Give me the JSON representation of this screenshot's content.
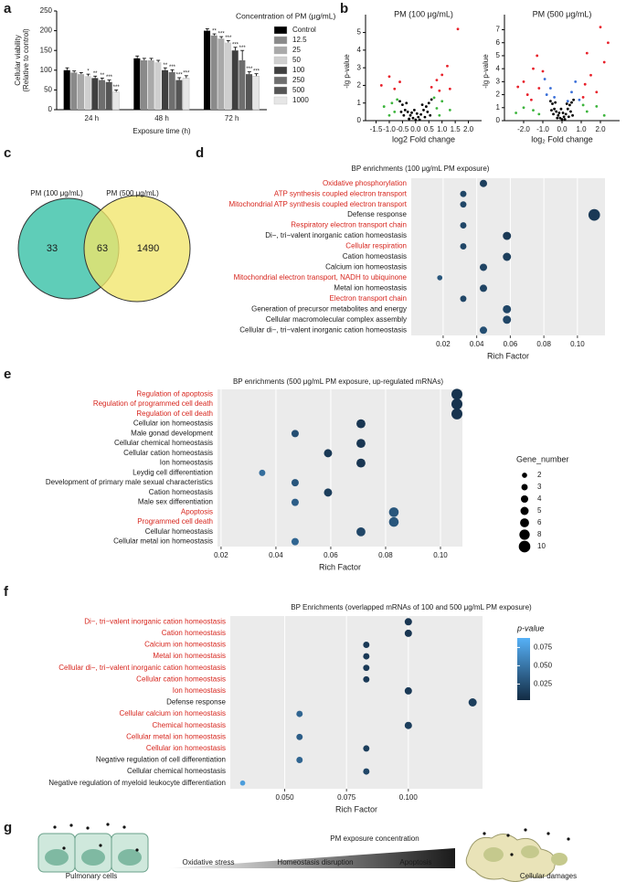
{
  "panel_labels": [
    "a",
    "b",
    "c",
    "d",
    "e",
    "f",
    "g"
  ],
  "chart_data": [
    {
      "type": "bar",
      "ylabel": [
        "Cellular viability",
        "(Relative to control)"
      ],
      "xlabel": "Exposure time (h)",
      "legend_title": "Concentration of PM (μg/mL)",
      "categories": [
        "24 h",
        "48 h",
        "72 h"
      ],
      "ylim": [
        0,
        250
      ],
      "yticks": [
        0,
        50,
        100,
        150,
        200,
        250
      ],
      "series": [
        {
          "name": "Control",
          "color": "#000000",
          "values": [
            100,
            130,
            200
          ],
          "errors": [
            6,
            6,
            5
          ],
          "annotations": [
            null,
            null,
            null
          ]
        },
        {
          "name": "12.5",
          "color": "#8a8a8a",
          "values": [
            94,
            125,
            188
          ],
          "errors": [
            4,
            5,
            4
          ],
          "annotations": [
            null,
            null,
            "**"
          ]
        },
        {
          "name": "25",
          "color": "#a9a9a9",
          "values": [
            90,
            125,
            180
          ],
          "errors": [
            4,
            5,
            5
          ],
          "annotations": [
            null,
            null,
            "***"
          ]
        },
        {
          "name": "50",
          "color": "#cfcfcf",
          "values": [
            85,
            120,
            170
          ],
          "errors": [
            5,
            5,
            5
          ],
          "annotations": [
            "*",
            null,
            "***"
          ]
        },
        {
          "name": "100",
          "color": "#3f3f3f",
          "values": [
            80,
            100,
            150
          ],
          "errors": [
            5,
            6,
            8
          ],
          "annotations": [
            "**",
            "**",
            "***"
          ]
        },
        {
          "name": "250",
          "color": "#6e6e6e",
          "values": [
            75,
            95,
            125
          ],
          "errors": [
            5,
            6,
            25
          ],
          "annotations": [
            "**",
            "***",
            "***"
          ]
        },
        {
          "name": "500",
          "color": "#555555",
          "values": [
            70,
            75,
            90
          ],
          "errors": [
            5,
            6,
            6
          ],
          "annotations": [
            "***",
            "***",
            "***"
          ]
        },
        {
          "name": "1000",
          "color": "#e6e6e6",
          "values": [
            45,
            80,
            85
          ],
          "errors": [
            5,
            6,
            6
          ],
          "annotations": [
            "***",
            "***",
            "***"
          ]
        }
      ]
    },
    {
      "type": "scatter",
      "title": "PM (100 μg/mL)",
      "xlabel": "log2 Fold change",
      "ylabel": "-lg p-value",
      "xlim": [
        -1.9,
        2.5
      ],
      "ylim": [
        0,
        5.6
      ],
      "xticks": [
        -1.5,
        {
          "value": -1,
          "label": "-1.0"
        },
        -0.5,
        {
          "value": 0,
          "label": "0.0"
        },
        0.5,
        {
          "value": 1,
          "label": "1.0"
        },
        1.5,
        {
          "value": 2,
          "label": "2.0"
        }
      ],
      "yticks": [
        0,
        1,
        2,
        3,
        4,
        5
      ],
      "series": [
        {
          "color": "#000000",
          "x": [
            -0.5,
            -0.4,
            -0.3,
            -0.2,
            -0.1,
            0,
            0.1,
            0.2,
            0.3,
            0.4,
            0.5,
            -0.6,
            0.6,
            -0.25,
            0.15,
            0.35,
            -0.45,
            0.05,
            -0.05,
            0.25,
            -0.35,
            0.45,
            -0.15,
            0.55,
            -0.55
          ],
          "y": [
            0.9,
            0.6,
            0.5,
            0.3,
            0.15,
            0.05,
            0.2,
            0.35,
            0.6,
            0.8,
            1.0,
            1.1,
            1.2,
            0.1,
            0.05,
            0.2,
            0.3,
            0.4,
            0.6,
            0.9,
            1.0,
            0.5,
            0.45,
            0.3,
            0.5
          ]
        },
        {
          "color": "#3cb43c",
          "x": [
            -1.2,
            -0.9,
            -0.8,
            0.8,
            1.0,
            1.3,
            -1.0,
            0.9,
            -0.7,
            0.7
          ],
          "y": [
            0.8,
            1.0,
            0.5,
            0.7,
            1.1,
            0.6,
            0.3,
            0.3,
            1.2,
            1.3
          ]
        },
        {
          "color": "#e8202a",
          "x": [
            -1.3,
            -0.8,
            -0.6,
            0.6,
            0.8,
            1.0,
            1.2,
            0.9,
            -1.0,
            1.6,
            1.3
          ],
          "y": [
            2.0,
            1.8,
            2.2,
            1.9,
            2.3,
            2.6,
            3.1,
            1.7,
            2.5,
            5.2,
            1.8
          ]
        }
      ]
    },
    {
      "type": "scatter",
      "title": "PM (500 μg/mL)",
      "xlabel": "log₂ Fold change",
      "ylabel": "-lg p-value",
      "xlim": [
        -3,
        3
      ],
      "ylim": [
        0,
        7.6
      ],
      "xticks": [
        {
          "value": -2,
          "label": "-2.0"
        },
        {
          "value": -1,
          "label": "-1.0"
        },
        {
          "value": 0,
          "label": "0.0"
        },
        {
          "value": 1,
          "label": "1.0"
        },
        {
          "value": 2,
          "label": "2.0"
        }
      ],
      "yticks": [
        0,
        1,
        2,
        3,
        4,
        5,
        6,
        7
      ],
      "series": [
        {
          "color": "#000000",
          "x": [
            -0.5,
            -0.4,
            -0.3,
            -0.2,
            -0.1,
            0,
            0.1,
            0.2,
            0.3,
            0.4,
            0.5,
            -0.6,
            0.6,
            -0.25,
            0.15,
            0.35,
            -0.45,
            0.05,
            -0.05,
            0.25,
            -0.35,
            0.45,
            -0.15,
            0.55,
            -0.55
          ],
          "y": [
            1.3,
            0.9,
            0.7,
            0.4,
            0.2,
            0.1,
            0.3,
            0.5,
            0.9,
            1.2,
            1.4,
            1.5,
            1.6,
            0.2,
            0.1,
            0.3,
            0.5,
            0.6,
            0.9,
            1.3,
            1.4,
            0.7,
            0.6,
            0.4,
            0.8
          ]
        },
        {
          "color": "#3cb43c",
          "x": [
            -1.5,
            -2.0,
            -1.2,
            1.3,
            1.8,
            2.2,
            -2.4,
            1.1
          ],
          "y": [
            0.8,
            1.0,
            0.5,
            0.7,
            1.1,
            0.4,
            0.6,
            1.2
          ]
        },
        {
          "color": "#3a6fd8",
          "x": [
            -0.8,
            -0.6,
            -0.4,
            0.5,
            0.7,
            0.9,
            -0.9,
            0.3
          ],
          "y": [
            2.0,
            2.5,
            1.8,
            2.2,
            3.0,
            1.6,
            3.2,
            1.5
          ]
        },
        {
          "color": "#e8202a",
          "x": [
            -2.0,
            -1.5,
            -1.2,
            -1.8,
            -1.3,
            -1.0,
            -2.3,
            1.2,
            1.5,
            1.8,
            2.2,
            1.3,
            2.0,
            1.1,
            -1.6,
            2.4
          ],
          "y": [
            3.0,
            4.0,
            2.5,
            2.0,
            5.0,
            3.8,
            2.6,
            2.8,
            3.5,
            2.2,
            4.5,
            5.2,
            7.2,
            1.8,
            1.6,
            6.0
          ]
        }
      ]
    },
    {
      "type": "dot",
      "title": "BP enrichments (100 μg/mL PM exposure)",
      "xlabel": "Rich Factor",
      "xlim": [
        0.001,
        0.1164
      ],
      "xticks": [
        0.02,
        0.04,
        0.06,
        0.08,
        {
          "value": 0.1,
          "label": "0.10"
        }
      ],
      "categories": [
        "Oxidative phosphorylation",
        "ATP synthesis coupled electron transport",
        "Mitochondrial ATP synthesis coupled electron transport",
        "Defense response",
        "Respiratory electron transport chain",
        "Di−, tri−valent inorganic cation homeostasis",
        "Cellular respiration",
        "Cation homeostasis",
        "Calcium ion homeostasis",
        "Mitochondrial electron transport, NADH to ubiquinone",
        "Metal ion homeostasis",
        "Electron transport chain",
        "Generation of precursor metabolites and energy",
        "Cellular macromolecular complex assembly",
        "Cellular di−, tri−valent inorganic cation homeostasis"
      ],
      "label_colors": [
        "#d7261e",
        "#d7261e",
        "#d7261e",
        "#1a1a1a",
        "#d7261e",
        "#1a1a1a",
        "#d7261e",
        "#1a1a1a",
        "#1a1a1a",
        "#d7261e",
        "#1a1a1a",
        "#d7261e",
        "#1a1a1a",
        "#1a1a1a",
        "#1a1a1a"
      ],
      "values": [
        0.044,
        0.032,
        0.032,
        0.11,
        0.032,
        0.058,
        0.032,
        0.058,
        0.044,
        0.018,
        0.044,
        0.032,
        0.058,
        0.058,
        0.044
      ],
      "gene_number": [
        4,
        3,
        3,
        10,
        3,
        5,
        3,
        5,
        4,
        2,
        4,
        3,
        5,
        5,
        4
      ],
      "p_value": [
        0.015,
        0.02,
        0.02,
        0.012,
        0.02,
        0.012,
        0.02,
        0.015,
        0.018,
        0.03,
        0.018,
        0.02,
        0.02,
        0.02,
        0.025
      ]
    },
    {
      "type": "dot",
      "title": "BP enrichments  (500 μg/mL PM exposure, up-regulated mRNAs)",
      "xlabel": "Rich Factor",
      "xlim": [
        0.0187,
        0.108
      ],
      "xticks": [
        0.02,
        0.04,
        0.06,
        0.08,
        {
          "value": 0.1,
          "label": "0.10"
        }
      ],
      "categories": [
        "Regulation of apoptosis",
        "Regulation of programmed cell death",
        "Regulation of cell death",
        "Cellular ion homeostasis",
        "Male gonad development",
        "Cellular chemical homeostasis",
        "Cellular cation homeostasis",
        "Ion homeostasis",
        "Leydig cell differentiation",
        "Development of primary male sexual characteristics",
        "Cation homeostasis",
        "Male sex differentiation",
        "Apoptosis",
        "Programmed cell death",
        "Cellular homeostasis",
        "Cellular metal ion homeostasis"
      ],
      "label_colors": [
        "#d7261e",
        "#d7261e",
        "#d7261e",
        "#1a1a1a",
        "#1a1a1a",
        "#1a1a1a",
        "#1a1a1a",
        "#1a1a1a",
        "#1a1a1a",
        "#1a1a1a",
        "#1a1a1a",
        "#1a1a1a",
        "#d7261e",
        "#d7261e",
        "#1a1a1a",
        "#1a1a1a"
      ],
      "values": [
        0.106,
        0.106,
        0.106,
        0.071,
        0.047,
        0.071,
        0.059,
        0.071,
        0.035,
        0.047,
        0.059,
        0.047,
        0.083,
        0.083,
        0.071,
        0.047
      ],
      "gene_number": [
        9,
        9,
        9,
        6,
        4,
        6,
        5,
        6,
        3,
        4,
        5,
        4,
        7,
        7,
        6,
        4
      ],
      "p_value": [
        0.008,
        0.008,
        0.008,
        0.01,
        0.025,
        0.01,
        0.012,
        0.01,
        0.045,
        0.03,
        0.015,
        0.035,
        0.03,
        0.03,
        0.02,
        0.04
      ],
      "size_legend": {
        "title": "Gene_number",
        "values": [
          2,
          3,
          4,
          5,
          6,
          8,
          10
        ]
      }
    },
    {
      "type": "dot",
      "title": "BP Enrichments (overlapped mRNAs of  100 and 500 μg/mL PM exposure)",
      "xlabel": "Rich Factor",
      "xlim": [
        0.028,
        0.13
      ],
      "xticks": [
        {
          "value": 0.05,
          "label": "0.050"
        },
        0.075,
        {
          "value": 0.1,
          "label": "0.100"
        }
      ],
      "categories": [
        "Di−, tri−valent inorganic cation homeostasis",
        "Cation homeostasis",
        "Calcium ion homeostasis",
        "Metal ion homeostasis",
        "Cellular di−, tri−valent inorganic cation homeostasis",
        "Cellular cation homeostasis",
        "Ion homeostasis",
        "Defense response",
        "Cellular calcium ion homeostasis",
        "Chemical homeostasis",
        "Cellular metal ion homeostasis",
        "Cellular ion homeostasis",
        "Negative regulation of cell differentiation",
        "Cellular chemical homeostasis",
        "Negative regulation of myeloid leukocyte differentiation"
      ],
      "label_colors": [
        "#d7261e",
        "#d7261e",
        "#d7261e",
        "#d7261e",
        "#d7261e",
        "#d7261e",
        "#d7261e",
        "#1a1a1a",
        "#d7261e",
        "#d7261e",
        "#d7261e",
        "#d7261e",
        "#1a1a1a",
        "#1a1a1a",
        "#1a1a1a"
      ],
      "values": [
        0.1,
        0.1,
        0.083,
        0.083,
        0.083,
        0.083,
        0.1,
        0.126,
        0.056,
        0.1,
        0.056,
        0.083,
        0.056,
        0.083,
        0.033
      ],
      "gene_number": [
        4,
        4,
        3,
        3,
        3,
        3,
        4,
        5,
        3,
        4,
        3,
        3,
        3,
        3,
        2
      ],
      "p_value": [
        0.01,
        0.01,
        0.012,
        0.012,
        0.012,
        0.012,
        0.012,
        0.015,
        0.04,
        0.015,
        0.035,
        0.015,
        0.04,
        0.02,
        0.075
      ],
      "colorbar": {
        "title": "p-value",
        "lim": [
          0.003,
          0.088
        ],
        "ticks": [
          0.025,
          {
            "value": 0.05,
            "label": "0.050"
          },
          0.075
        ],
        "colors": [
          "#132B43",
          "#56B1F7"
        ]
      }
    }
  ],
  "venn": {
    "sets": [
      "PM (100 μg/mL)",
      "PM (500 μg/mL)"
    ],
    "counts": [
      33,
      63,
      1490
    ]
  },
  "schematic": {
    "arrow_label": "PM exposure concentration",
    "stages": [
      "Oxidative stress",
      "Homeostasis disruption",
      "Apoptosis"
    ],
    "left_label": "Pulmonary cells",
    "right_label": "Cellular damages"
  }
}
